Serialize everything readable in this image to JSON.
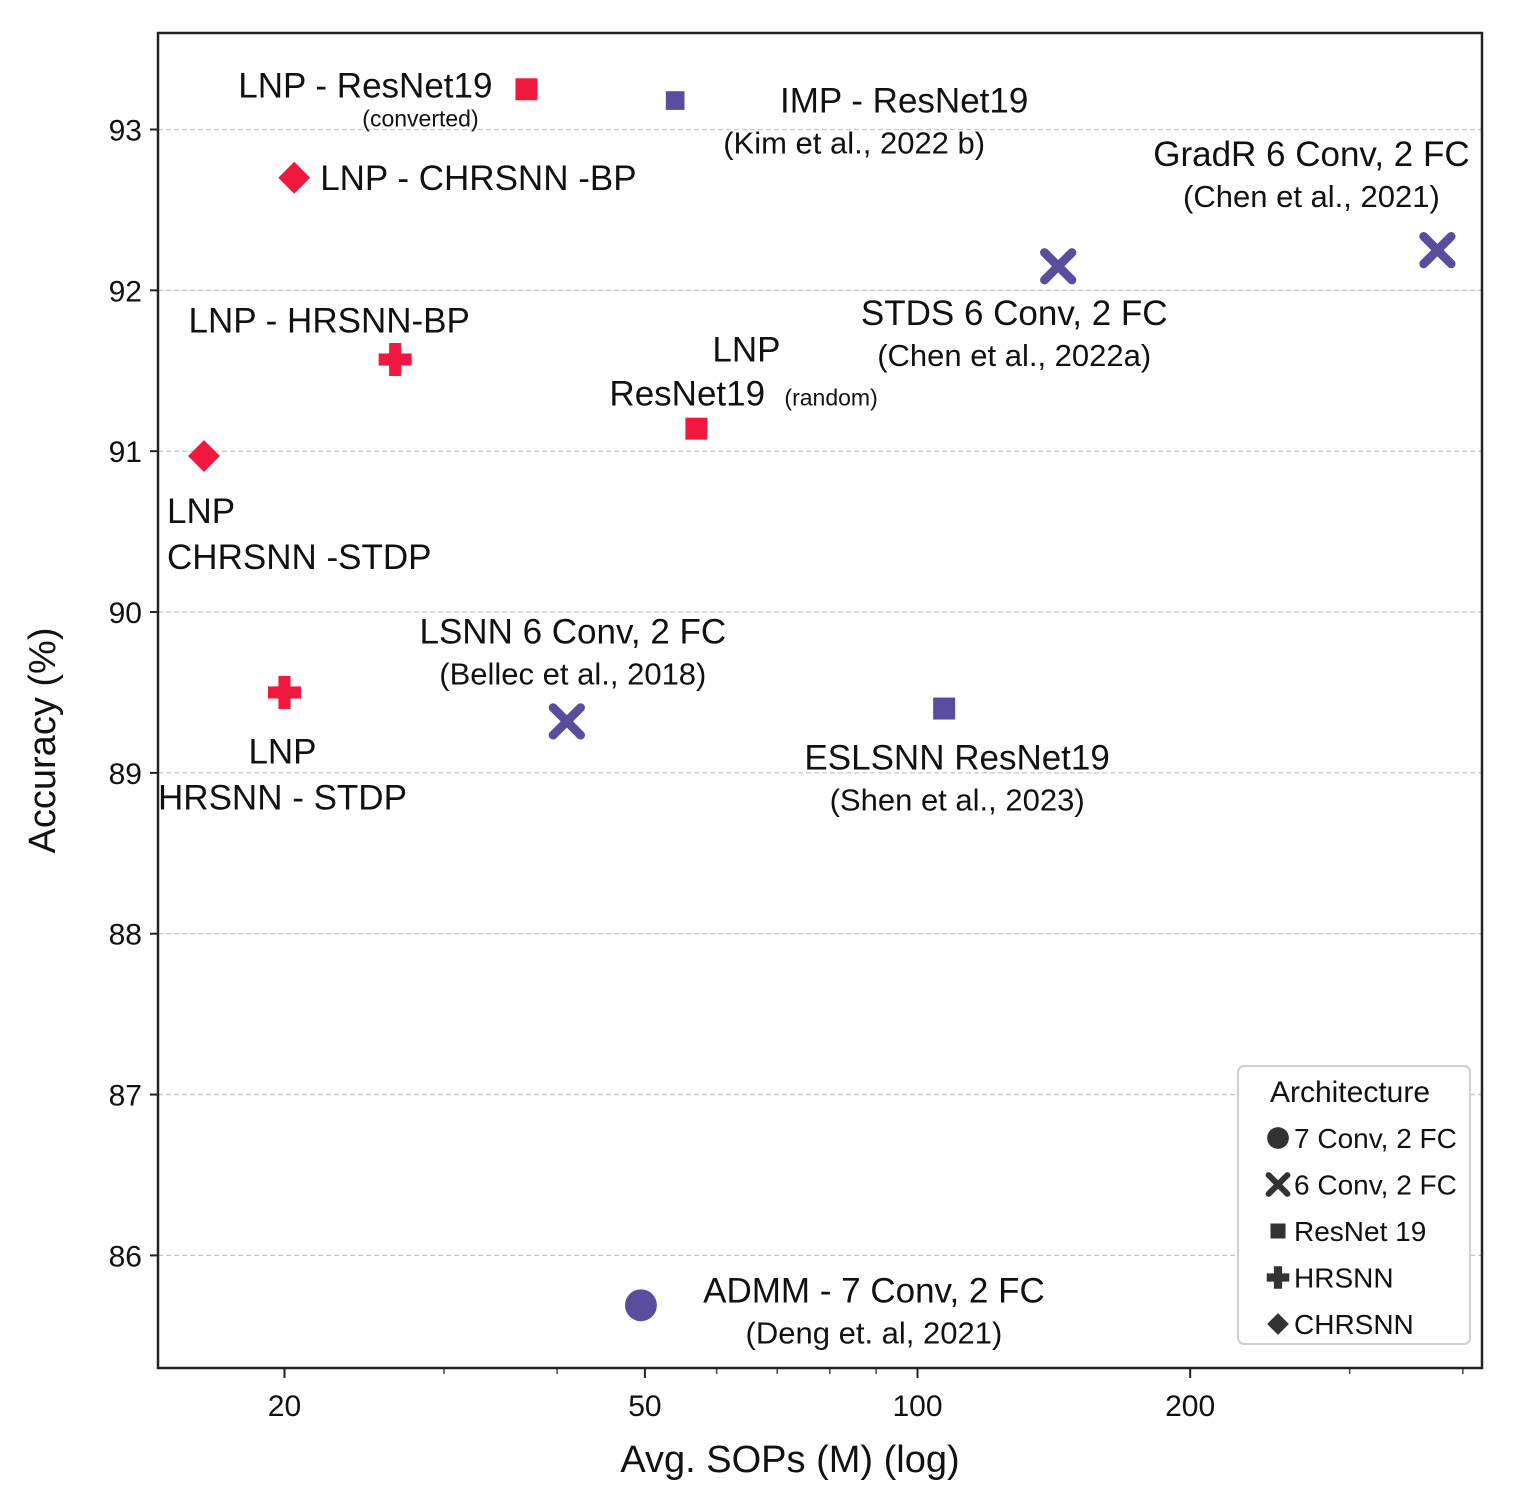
{
  "chart_data": {
    "type": "scatter",
    "xlabel": "Avg. SOPs (M) (log)",
    "ylabel": "Accuracy (%)",
    "x_scale": "log",
    "xlim": [
      14.5,
      420
    ],
    "ylim": [
      85.3,
      93.6
    ],
    "x_ticks": [
      20,
      50,
      100,
      200
    ],
    "y_ticks": [
      86,
      87,
      88,
      89,
      90,
      91,
      92,
      93
    ],
    "grid": true,
    "colors": {
      "lnp": "#f0183f",
      "baseline": "#5b4d9e",
      "legend_marker": "#333333"
    },
    "legend": {
      "title": "Architecture",
      "placement": "bottom-right",
      "entries": [
        {
          "label": "7 Conv, 2 FC",
          "marker": "circle"
        },
        {
          "label": "6 Conv, 2 FC",
          "marker": "x"
        },
        {
          "label": "ResNet 19",
          "marker": "square"
        },
        {
          "label": "HRSNN",
          "marker": "plus"
        },
        {
          "label": "CHRSNN",
          "marker": "diamond"
        }
      ]
    },
    "points": [
      {
        "id": "lnp-resnet19-converted",
        "x": 37,
        "y": 93.25,
        "marker": "square",
        "group": "lnp",
        "label": [
          {
            "text": "LNP - ResNet19",
            "size": "main"
          },
          {
            "text": "(converted)",
            "size": "small"
          }
        ]
      },
      {
        "id": "imp-resnet19",
        "x": 54,
        "y": 93.18,
        "marker": "square-small",
        "group": "baseline",
        "label": [
          {
            "text": "IMP - ResNet19",
            "size": "main"
          },
          {
            "text": "(Kim et al., 2022 b)",
            "size": "sub"
          }
        ]
      },
      {
        "id": "lnp-chrsnn-bp",
        "x": 20.5,
        "y": 92.7,
        "marker": "diamond",
        "group": "lnp",
        "label": [
          {
            "text": "LNP  - CHRSNN -BP",
            "size": "main"
          }
        ]
      },
      {
        "id": "gradr",
        "x": 375,
        "y": 92.25,
        "marker": "x",
        "group": "baseline",
        "label": [
          {
            "text": "GradR 6 Conv, 2 FC",
            "size": "main"
          },
          {
            "text": "(Chen et al., 2021)",
            "size": "sub"
          }
        ]
      },
      {
        "id": "stds",
        "x": 143,
        "y": 92.15,
        "marker": "x",
        "group": "baseline",
        "label": [
          {
            "text": "STDS 6 Conv, 2 FC",
            "size": "main"
          },
          {
            "text": "(Chen et al., 2022a)",
            "size": "sub"
          }
        ]
      },
      {
        "id": "lnp-hrsnn-bp",
        "x": 26.5,
        "y": 91.57,
        "marker": "plus",
        "group": "lnp",
        "label": [
          {
            "text": "LNP  - HRSNN-BP",
            "size": "main"
          }
        ]
      },
      {
        "id": "lnp-resnet19-random",
        "x": 57,
        "y": 91.14,
        "marker": "square",
        "group": "lnp",
        "label": [
          {
            "text": "LNP",
            "size": "main"
          },
          {
            "text": "ResNet19",
            "size": "main"
          },
          {
            "text": "(random)",
            "size": "small"
          }
        ]
      },
      {
        "id": "lnp-chrsnn-stdp",
        "x": 16.3,
        "y": 90.97,
        "marker": "diamond",
        "group": "lnp",
        "label": [
          {
            "text": "LNP",
            "size": "main"
          },
          {
            "text": "CHRSNN -STDP",
            "size": "main"
          }
        ]
      },
      {
        "id": "lnp-hrsnn-stdp",
        "x": 20,
        "y": 89.5,
        "marker": "plus",
        "group": "lnp",
        "label": [
          {
            "text": "LNP",
            "size": "main"
          },
          {
            "text": "HRSNN - STDP",
            "size": "main"
          }
        ]
      },
      {
        "id": "lsnn",
        "x": 41,
        "y": 89.32,
        "marker": "x",
        "group": "baseline",
        "label": [
          {
            "text": "LSNN 6 Conv, 2 FC",
            "size": "main"
          },
          {
            "text": "(Bellec et al., 2018)",
            "size": "sub"
          }
        ]
      },
      {
        "id": "eslsnn",
        "x": 107,
        "y": 89.4,
        "marker": "square",
        "group": "baseline",
        "label": [
          {
            "text": "ESLSNN ResNet19",
            "size": "main"
          },
          {
            "text": "(Shen et al., 2023)",
            "size": "sub"
          }
        ]
      },
      {
        "id": "admm",
        "x": 49.5,
        "y": 85.69,
        "marker": "circle",
        "group": "baseline",
        "label": [
          {
            "text": "ADMM - 7 Conv, 2 FC",
            "size": "main"
          },
          {
            "text": "(Deng et. al, 2021)",
            "size": "sub"
          }
        ]
      }
    ]
  }
}
